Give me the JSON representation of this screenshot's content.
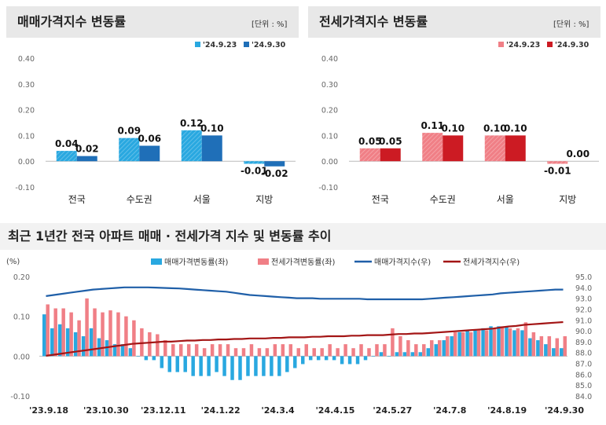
{
  "colors": {
    "sale_light": "#29a8e0",
    "sale_dark": "#1f6fb8",
    "rent_light": "#f07f86",
    "rent_dark": "#cc1b23",
    "sale_index_line": "#1f5fa8",
    "rent_index_line": "#a31515"
  },
  "chart_data": [
    {
      "type": "bar",
      "title": "매매가격지수 변동률",
      "unit": "[단위 : %]",
      "categories": [
        "전국",
        "수도권",
        "서울",
        "지방"
      ],
      "series": [
        {
          "name": "'24.9.23",
          "values": [
            0.04,
            0.09,
            0.12,
            -0.01
          ]
        },
        {
          "name": "'24.9.30",
          "values": [
            0.02,
            0.06,
            0.1,
            -0.02
          ]
        }
      ],
      "value_labels": [
        [
          "0.04",
          "0.02"
        ],
        [
          "0.09",
          "0.06"
        ],
        [
          "0.12",
          "0.10"
        ],
        [
          "-0.01",
          "-0.02"
        ]
      ],
      "ylim": [
        -0.1,
        0.4
      ],
      "yticks": [
        "0.40",
        "0.30",
        "0.20",
        "0.10",
        "0.00",
        "-0.10"
      ]
    },
    {
      "type": "bar",
      "title": "전세가격지수 변동률",
      "unit": "[단위 : %]",
      "categories": [
        "전국",
        "수도권",
        "서울",
        "지방"
      ],
      "series": [
        {
          "name": "'24.9.23",
          "values": [
            0.05,
            0.11,
            0.1,
            -0.01
          ]
        },
        {
          "name": "'24.9.30",
          "values": [
            0.05,
            0.1,
            0.1,
            0.0
          ]
        }
      ],
      "value_labels": [
        [
          "0.05",
          "0.05"
        ],
        [
          "0.11",
          "0.10"
        ],
        [
          "0.10",
          "0.10"
        ],
        [
          "-0.01",
          "0.00"
        ]
      ],
      "ylim": [
        -0.1,
        0.4
      ],
      "yticks": [
        "0.40",
        "0.30",
        "0.20",
        "0.10",
        "0.00",
        "-0.10"
      ]
    },
    {
      "type": "bar+line",
      "title": "최근 1년간 전국 아파트 매매 · 전세가격 지수 및 변동률 추이",
      "left_axis_label": "(%)",
      "ylim_left": [
        -0.1,
        0.2
      ],
      "yticks_left": [
        "0.20",
        "0.10",
        "0.00",
        "-0.10"
      ],
      "ylim_right": [
        84.0,
        95.0
      ],
      "yticks_right": [
        "95.0",
        "94.0",
        "93.0",
        "92.0",
        "91.0",
        "90.0",
        "89.0",
        "88.0",
        "87.0",
        "86.0",
        "85.0",
        "84.0"
      ],
      "x_tick_labels": [
        "'23.9.18",
        "'23.10.30",
        "'23.12.11",
        "'24.1.22",
        "'24.3.4",
        "'24.4.15",
        "'24.5.27",
        "'24.7.8",
        "'24.8.19",
        "'24.9.30"
      ],
      "legend": [
        "매매가격변동률(좌)",
        "전세가격변동률(좌)",
        "매매가격지수(우)",
        "전세가격지수(우)"
      ],
      "sale_change": [
        0.105,
        0.07,
        0.08,
        0.07,
        0.06,
        0.05,
        0.07,
        0.045,
        0.04,
        0.03,
        0.03,
        0.02,
        0.0,
        -0.01,
        -0.01,
        -0.03,
        -0.04,
        -0.04,
        -0.04,
        -0.05,
        -0.05,
        -0.05,
        -0.04,
        -0.05,
        -0.06,
        -0.06,
        -0.05,
        -0.05,
        -0.05,
        -0.05,
        -0.05,
        -0.04,
        -0.03,
        -0.02,
        -0.01,
        -0.01,
        -0.01,
        -0.01,
        -0.02,
        -0.02,
        -0.02,
        -0.01,
        0.0,
        0.01,
        0.0,
        0.01,
        0.01,
        0.01,
        0.01,
        0.02,
        0.03,
        0.04,
        0.05,
        0.06,
        0.065,
        0.065,
        0.07,
        0.075,
        0.075,
        0.075,
        0.065,
        0.065,
        0.045,
        0.04,
        0.03,
        0.02,
        0.02
      ],
      "rent_change": [
        0.13,
        0.12,
        0.12,
        0.11,
        0.09,
        0.145,
        0.12,
        0.11,
        0.115,
        0.11,
        0.1,
        0.09,
        0.07,
        0.06,
        0.055,
        0.04,
        0.03,
        0.03,
        0.03,
        0.03,
        0.02,
        0.03,
        0.03,
        0.03,
        0.02,
        0.02,
        0.03,
        0.02,
        0.02,
        0.03,
        0.03,
        0.03,
        0.02,
        0.03,
        0.02,
        0.02,
        0.03,
        0.02,
        0.03,
        0.02,
        0.03,
        0.02,
        0.03,
        0.03,
        0.07,
        0.05,
        0.04,
        0.03,
        0.03,
        0.04,
        0.04,
        0.05,
        0.06,
        0.06,
        0.06,
        0.065,
        0.065,
        0.07,
        0.075,
        0.07,
        0.07,
        0.085,
        0.06,
        0.05,
        0.05,
        0.045,
        0.05
      ],
      "sale_index": [
        93.2,
        93.3,
        93.4,
        93.5,
        93.6,
        93.7,
        93.8,
        93.85,
        93.9,
        93.95,
        94.0,
        94.0,
        94.0,
        94.0,
        93.98,
        93.95,
        93.92,
        93.9,
        93.85,
        93.8,
        93.75,
        93.7,
        93.65,
        93.6,
        93.5,
        93.4,
        93.3,
        93.25,
        93.2,
        93.15,
        93.1,
        93.05,
        93.0,
        93.0,
        93.0,
        92.95,
        92.95,
        92.95,
        92.95,
        92.95,
        92.95,
        92.9,
        92.9,
        92.9,
        92.9,
        92.9,
        92.9,
        92.9,
        92.9,
        92.95,
        93.0,
        93.05,
        93.1,
        93.15,
        93.2,
        93.25,
        93.3,
        93.35,
        93.45,
        93.5,
        93.55,
        93.6,
        93.65,
        93.7,
        93.75,
        93.8,
        93.8
      ],
      "rent_index": [
        87.7,
        87.8,
        87.9,
        88.0,
        88.1,
        88.2,
        88.3,
        88.4,
        88.5,
        88.6,
        88.7,
        88.8,
        88.85,
        88.9,
        88.95,
        89.0,
        89.0,
        89.05,
        89.1,
        89.1,
        89.15,
        89.15,
        89.2,
        89.2,
        89.25,
        89.25,
        89.3,
        89.3,
        89.3,
        89.35,
        89.35,
        89.4,
        89.4,
        89.4,
        89.45,
        89.45,
        89.5,
        89.5,
        89.5,
        89.55,
        89.55,
        89.6,
        89.6,
        89.6,
        89.65,
        89.7,
        89.7,
        89.75,
        89.75,
        89.8,
        89.85,
        89.9,
        89.95,
        90.0,
        90.05,
        90.1,
        90.15,
        90.2,
        90.3,
        90.4,
        90.45,
        90.55,
        90.6,
        90.65,
        90.7,
        90.75,
        90.8
      ]
    }
  ]
}
